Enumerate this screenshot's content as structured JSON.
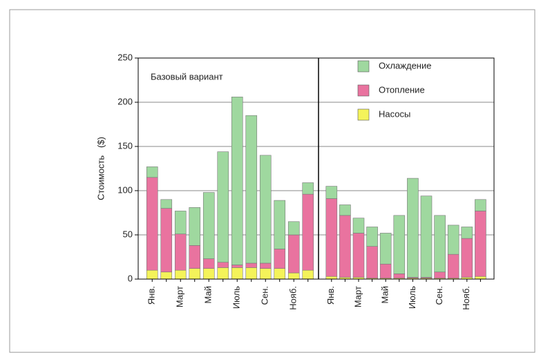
{
  "chart_data": [
    {
      "type": "bar",
      "stacked": true,
      "annotation": "Базовый вариант",
      "ylabel": "Стоимость   ($)",
      "categories": [
        "Янв.",
        null,
        "Март",
        null,
        "Май",
        null,
        "Июль",
        null,
        "Сен.",
        null,
        "Нояб.",
        null
      ],
      "series": [
        {
          "name": "Насосы",
          "color": "#f4f35a",
          "values": [
            10,
            8,
            10,
            12,
            12,
            13,
            13,
            13,
            12,
            12,
            7,
            10
          ]
        },
        {
          "name": "Отопление",
          "color": "#e9739f",
          "values": [
            105,
            72,
            41,
            26,
            11,
            6,
            3,
            5,
            6,
            22,
            43,
            86
          ]
        },
        {
          "name": "Охлаждение",
          "color": "#9fd89f",
          "values": [
            12,
            10,
            26,
            43,
            75,
            125,
            190,
            167,
            122,
            55,
            15,
            13
          ]
        }
      ],
      "ylim": [
        0,
        250
      ],
      "yticks": [
        0,
        50,
        100,
        150,
        200,
        250
      ],
      "grid": true
    },
    {
      "type": "bar",
      "stacked": true,
      "legend": "top-right",
      "categories": [
        "Янв.",
        null,
        "Март",
        null,
        "Май",
        null,
        "Июль",
        null,
        "Сен.",
        null,
        "Нояб.",
        null
      ],
      "series": [
        {
          "name": "Насосы",
          "color": "#f4f35a",
          "values": [
            3,
            2,
            2,
            1,
            1,
            1,
            1,
            1,
            1,
            1,
            2,
            3
          ]
        },
        {
          "name": "Отопление",
          "color": "#e9739f",
          "values": [
            88,
            70,
            50,
            36,
            16,
            5,
            1,
            1,
            7,
            27,
            44,
            74
          ]
        },
        {
          "name": "Охлаждение",
          "color": "#9fd89f",
          "values": [
            14,
            12,
            17,
            22,
            35,
            66,
            112,
            92,
            64,
            33,
            13,
            13
          ]
        }
      ],
      "ylim": [
        0,
        250
      ],
      "yticks": [
        0,
        50,
        100,
        150,
        200,
        250
      ],
      "grid": true
    }
  ]
}
